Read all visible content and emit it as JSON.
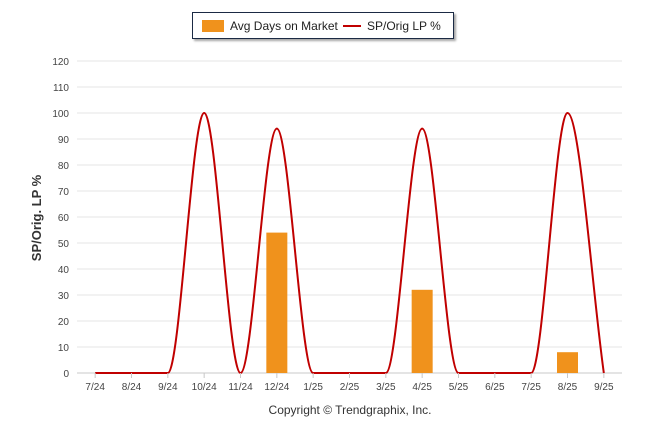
{
  "legend": {
    "bar_label": "Avg Days on Market",
    "line_label": "SP/Orig LP %"
  },
  "footer": "Copyright © Trendgraphix, Inc.",
  "colors": {
    "bar": "#f0921c",
    "line": "#c00000",
    "grid": "#e6e6e6"
  },
  "chart_data": {
    "type": "bar",
    "categories": [
      "7/24",
      "8/24",
      "9/24",
      "10/24",
      "11/24",
      "12/24",
      "1/25",
      "2/25",
      "3/25",
      "4/25",
      "5/25",
      "6/25",
      "7/25",
      "8/25",
      "9/25"
    ],
    "ylabel": "SP/Orig. LP %",
    "ylim": [
      0,
      120
    ],
    "yticks": [
      0,
      10,
      20,
      30,
      40,
      50,
      60,
      70,
      80,
      90,
      100,
      110,
      120
    ],
    "grid": true,
    "legend_position": "top",
    "series": [
      {
        "name": "Avg Days on Market",
        "type": "bar",
        "values": [
          0,
          0,
          0,
          0,
          0,
          54,
          0,
          0,
          0,
          32,
          0,
          0,
          0,
          8,
          0
        ]
      },
      {
        "name": "SP/Orig LP %",
        "type": "line",
        "values": [
          0,
          0,
          0,
          100,
          0,
          94,
          0,
          0,
          0,
          94,
          0,
          0,
          0,
          100,
          0
        ]
      }
    ]
  }
}
